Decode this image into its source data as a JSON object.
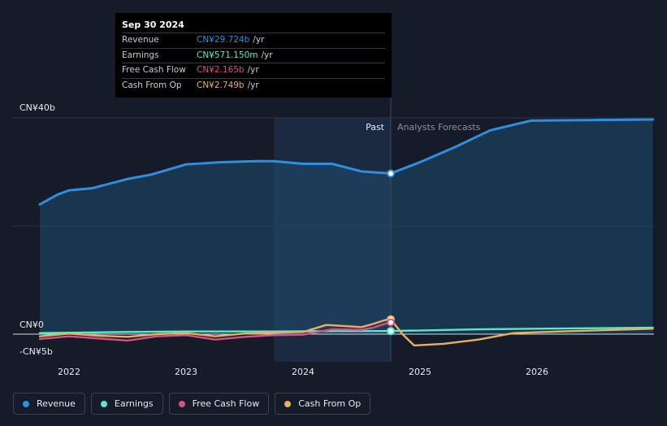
{
  "colors": {
    "revenue": "#2f8fdf",
    "earnings": "#5ce8c8",
    "free_cash_flow": "#d94f87",
    "cash_from_op": "#e8b060",
    "background": "#151b29"
  },
  "tooltip": {
    "date": "Sep 30 2024",
    "rows": [
      {
        "label": "Revenue",
        "value": "CN¥29.724b",
        "unit": "/yr"
      },
      {
        "label": "Earnings",
        "value": "CN¥571.150m",
        "unit": "/yr"
      },
      {
        "label": "Free Cash Flow",
        "value": "CN¥2.165b",
        "unit": "/yr"
      },
      {
        "label": "Cash From Op",
        "value": "CN¥2.749b",
        "unit": "/yr"
      }
    ]
  },
  "legend": [
    {
      "label": "Revenue"
    },
    {
      "label": "Earnings"
    },
    {
      "label": "Free Cash Flow"
    },
    {
      "label": "Cash From Op"
    }
  ],
  "chart_data": {
    "type": "line",
    "y_tick_labels": [
      "CN¥40b",
      "CN¥0",
      "-CN¥5b"
    ],
    "x_tick_labels": [
      "2022",
      "2023",
      "2024",
      "2025",
      "2026"
    ],
    "past_label": "Past",
    "forecast_label": "Analysts Forecasts",
    "ylim": [
      -5,
      40
    ],
    "grid": true,
    "divider_x": 2024.75,
    "series": [
      {
        "name": "Revenue",
        "key": "revenue",
        "area": true,
        "x": [
          2021.75,
          2021.9,
          2022.0,
          2022.2,
          2022.5,
          2022.7,
          2023.0,
          2023.3,
          2023.6,
          2023.75,
          2024.0,
          2024.25,
          2024.5,
          2024.75,
          2025.0,
          2025.3,
          2025.6,
          2025.95,
          2026.5,
          2026.99
        ],
        "values": [
          24.0,
          25.8,
          26.6,
          27.0,
          28.7,
          29.5,
          31.4,
          31.8,
          32.0,
          32.0,
          31.5,
          31.5,
          30.1,
          29.724,
          31.8,
          34.6,
          37.7,
          39.5,
          39.6,
          39.7
        ]
      },
      {
        "name": "Earnings",
        "key": "earnings",
        "area": false,
        "x": [
          2021.75,
          2022.5,
          2023.0,
          2023.75,
          2024.25,
          2024.75,
          2025.5,
          2026.0,
          2026.99
        ],
        "values": [
          0.2,
          0.4,
          0.5,
          0.5,
          0.55,
          0.571,
          0.9,
          1.0,
          1.2
        ]
      },
      {
        "name": "Free Cash Flow",
        "key": "free_cash_flow",
        "area": false,
        "x": [
          2021.75,
          2022.0,
          2022.25,
          2022.5,
          2022.75,
          2023.0,
          2023.25,
          2023.5,
          2023.75,
          2024.0,
          2024.25,
          2024.5,
          2024.6,
          2024.7,
          2024.75
        ],
        "values": [
          -0.9,
          -0.4,
          -0.8,
          -1.2,
          -0.4,
          -0.2,
          -1.0,
          -0.5,
          -0.2,
          -0.1,
          0.9,
          0.8,
          1.2,
          1.9,
          2.165
        ]
      },
      {
        "name": "Cash From Op",
        "key": "cash_from_op",
        "area": false,
        "x": [
          2021.75,
          2022.0,
          2022.25,
          2022.5,
          2022.75,
          2023.0,
          2023.25,
          2023.5,
          2023.75,
          2024.0,
          2024.2,
          2024.5,
          2024.6,
          2024.7,
          2024.75,
          2024.85,
          2024.95,
          2025.2,
          2025.5,
          2025.8,
          2026.2,
          2026.99
        ],
        "values": [
          -0.4,
          0.1,
          -0.3,
          -0.5,
          0.0,
          0.2,
          -0.4,
          0.1,
          0.3,
          0.4,
          1.7,
          1.3,
          1.9,
          2.6,
          2.749,
          0.0,
          -2.1,
          -1.8,
          -1.0,
          0.2,
          0.5,
          1.0
        ]
      }
    ],
    "markers": [
      {
        "key": "revenue",
        "x": 2024.75,
        "y": 29.724
      },
      {
        "key": "cash_from_op",
        "x": 2024.75,
        "y": 2.749
      },
      {
        "key": "free_cash_flow",
        "x": 2024.75,
        "y": 2.165
      },
      {
        "key": "earnings",
        "x": 2024.75,
        "y": 0.571
      }
    ]
  }
}
